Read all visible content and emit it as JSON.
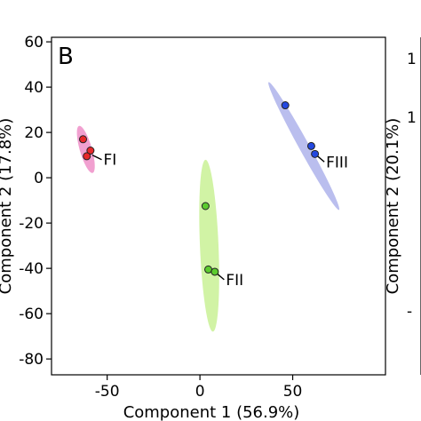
{
  "chart_data": {
    "type": "scatter",
    "panel_letter": "B",
    "xlabel": "Component 1 (56.9%)",
    "ylabel": "Component 2 (17.8%)",
    "right_ylabel": "Component 2 (20.1%)",
    "right_ticks": [
      "1",
      "1",
      "-"
    ],
    "xlim": [
      -80,
      100
    ],
    "ylim": [
      -87,
      62
    ],
    "x_ticks": [
      -50,
      0,
      50
    ],
    "y_ticks": [
      60,
      40,
      20,
      0,
      -20,
      -40,
      -60,
      -80
    ],
    "x_tick_labels": [
      "-50",
      "0",
      "50"
    ],
    "y_tick_labels": [
      "60",
      "40",
      "20",
      "0",
      "-20",
      "-40",
      "-60",
      "-80"
    ],
    "grid": false,
    "series": [
      {
        "name": "FI",
        "color": "#e8282b",
        "ellipse_color": "#ee88c4",
        "points": [
          [
            -63,
            17
          ],
          [
            -59,
            12
          ],
          [
            -61,
            9.5
          ]
        ],
        "ellipse": {
          "cx": -61.5,
          "cy": 12.5,
          "angle_deg": -70,
          "semi_major": 11,
          "semi_minor": 3.2
        },
        "label_anchor": [
          -58,
          10
        ],
        "label_at": [
          -52,
          8
        ]
      },
      {
        "name": "FII",
        "color": "#5ccc2e",
        "ellipse_color": "#c6f08e",
        "points": [
          [
            3,
            -12.5
          ],
          [
            4.5,
            -40.5
          ],
          [
            8,
            -41.5
          ]
        ],
        "ellipse": {
          "cx": 5,
          "cy": -30,
          "angle_deg": -87,
          "semi_major": 38,
          "semi_minor": 5
        },
        "label_anchor": [
          8,
          -41.5
        ],
        "label_at": [
          14,
          -45
        ]
      },
      {
        "name": "FIII",
        "color": "#2348e0",
        "ellipse_color": "#a9aeea",
        "points": [
          [
            46,
            32
          ],
          [
            60,
            14
          ],
          [
            62,
            10.5
          ]
        ],
        "ellipse": {
          "cx": 56,
          "cy": 14,
          "angle_deg": -56,
          "semi_major": 34,
          "semi_minor": 2.6
        },
        "label_anchor": [
          62,
          10.5
        ],
        "label_at": [
          68,
          7
        ]
      }
    ]
  }
}
